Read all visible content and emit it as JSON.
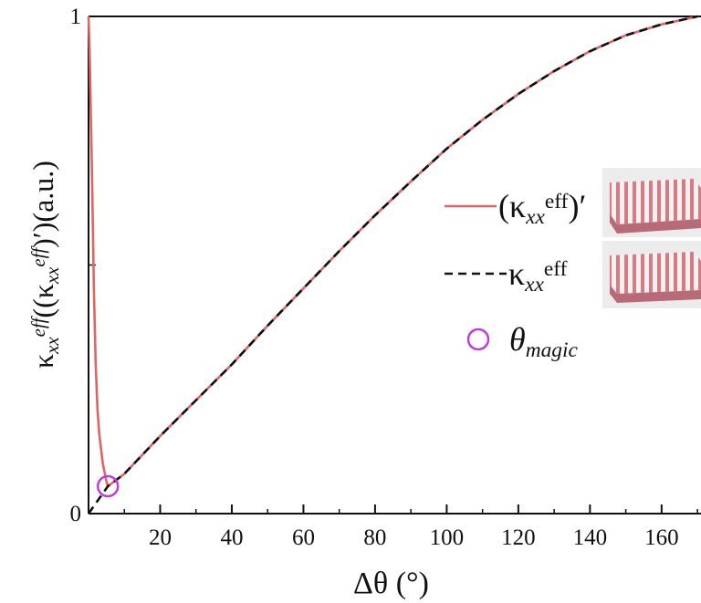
{
  "chart_data": {
    "type": "line",
    "xlabel": [
      {
        "text": "Δθ (°)"
      }
    ],
    "ylabel": [
      {
        "text": "κ"
      },
      {
        "text": "xx",
        "style": "sub-italic"
      },
      {
        "text": "eff",
        "style": "sup-italic"
      },
      {
        "text": "((κ"
      },
      {
        "text": "xx",
        "style": "sub-italic"
      },
      {
        "text": "eff",
        "style": "sup-italic"
      },
      {
        "text": ")′)(a.u.)"
      }
    ],
    "xlim": [
      0,
      171
    ],
    "ylim": [
      0,
      1
    ],
    "xticks": [
      20,
      40,
      60,
      80,
      100,
      120,
      140,
      160
    ],
    "xminorticks": [
      10,
      30,
      50,
      70,
      90,
      110,
      130,
      150,
      170
    ],
    "yticks": [
      0,
      1
    ],
    "yminorticks": [
      0.5
    ],
    "series": [
      {
        "name": [
          {
            "text": "(κ"
          },
          {
            "text": "xx",
            "style": "sub-italic"
          },
          {
            "text": "eff",
            "style": "sup"
          },
          {
            "text": ")′"
          }
        ],
        "color": "#e06464",
        "dash": false,
        "x": [
          0,
          0.3,
          0.6,
          1,
          1.5,
          2,
          2.5,
          3,
          4,
          5,
          5.4,
          10,
          20,
          30,
          40,
          50,
          60,
          70,
          80,
          90,
          100,
          110,
          120,
          130,
          140,
          150,
          160,
          170
        ],
        "values": [
          1,
          0.93,
          0.82,
          0.67,
          0.45,
          0.3,
          0.21,
          0.16,
          0.1,
          0.065,
          0.055,
          0.08,
          0.156,
          0.228,
          0.3,
          0.378,
          0.453,
          0.528,
          0.6,
          0.668,
          0.734,
          0.792,
          0.844,
          0.89,
          0.93,
          0.962,
          0.984,
          1
        ]
      },
      {
        "name": [
          {
            "text": "κ"
          },
          {
            "text": "xx",
            "style": "sub-italic"
          },
          {
            "text": "eff",
            "style": "sup"
          }
        ],
        "color": "#111111",
        "dash": true,
        "x": [
          0,
          5.4,
          10,
          20,
          30,
          40,
          50,
          60,
          70,
          80,
          90,
          100,
          110,
          120,
          130,
          140,
          150,
          160,
          170
        ],
        "values": [
          0,
          0.055,
          0.08,
          0.156,
          0.228,
          0.3,
          0.378,
          0.453,
          0.528,
          0.6,
          0.668,
          0.734,
          0.792,
          0.844,
          0.89,
          0.93,
          0.962,
          0.984,
          1
        ]
      },
      {
        "name": [
          {
            "text": "θ",
            "style": "italic"
          },
          {
            "text": "magic",
            "style": "sub-italic"
          }
        ],
        "color": "#c03cdc",
        "marker": "circle",
        "x": [
          5.4
        ],
        "values": [
          0.055
        ]
      }
    ]
  }
}
